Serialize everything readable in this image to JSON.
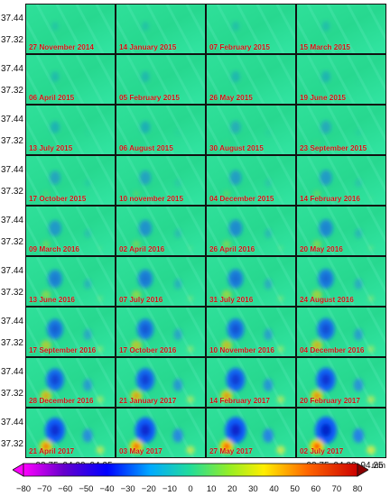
{
  "figure": {
    "y_ticks": [
      "37.44",
      "37.32"
    ],
    "x_ticks": [
      "93.75",
      "94.00",
      "94.25"
    ],
    "panels": [
      {
        "date": "27 November 2014",
        "level": 0.0
      },
      {
        "date": "14 January 2015",
        "level": 0.02
      },
      {
        "date": "07 February 2015",
        "level": 0.04
      },
      {
        "date": "15 March 2015",
        "level": 0.06
      },
      {
        "date": "06 April 2015",
        "level": 0.08
      },
      {
        "date": "05 February 2015",
        "level": 0.1
      },
      {
        "date": "26 May 2015",
        "level": 0.12
      },
      {
        "date": "19 June 2015",
        "level": 0.14
      },
      {
        "date": "13 July 2015",
        "level": 0.16
      },
      {
        "date": "06 August 2015",
        "level": 0.18
      },
      {
        "date": "30 August 2015",
        "level": 0.2
      },
      {
        "date": "23 September 2015",
        "level": 0.22
      },
      {
        "date": "17 October 2015",
        "level": 0.26
      },
      {
        "date": "10 november 2015",
        "level": 0.29
      },
      {
        "date": "04 December 2015",
        "level": 0.32
      },
      {
        "date": "14 February 2016",
        "level": 0.35
      },
      {
        "date": "09 March 2016",
        "level": 0.38
      },
      {
        "date": "02 April 2016",
        "level": 0.41
      },
      {
        "date": "26 April 2016",
        "level": 0.44
      },
      {
        "date": "20 May 2016",
        "level": 0.47
      },
      {
        "date": "13 June 2016",
        "level": 0.5
      },
      {
        "date": "07 July 2016",
        "level": 0.53
      },
      {
        "date": "31 July 2016",
        "level": 0.56
      },
      {
        "date": "24 August 2016",
        "level": 0.59
      },
      {
        "date": "17 September 2016",
        "level": 0.62
      },
      {
        "date": "17 October 2016",
        "level": 0.65
      },
      {
        "date": "10 November 2016",
        "level": 0.68
      },
      {
        "date": "04 December 2016",
        "level": 0.71
      },
      {
        "date": "28 December 2016",
        "level": 0.74
      },
      {
        "date": "21 January 2017",
        "level": 0.77
      },
      {
        "date": "14 February 2017",
        "level": 0.8
      },
      {
        "date": "20 February 2017",
        "level": 0.83
      },
      {
        "date": "21 April 2017",
        "level": 0.88
      },
      {
        "date": "03 May 2017",
        "level": 0.92
      },
      {
        "date": "27 May 2017",
        "level": 0.96
      },
      {
        "date": "02 July 2017",
        "level": 1.0
      }
    ]
  },
  "colorbar": {
    "unit": "mm",
    "ticks": [
      "−80",
      "−70",
      "−60",
      "−50",
      "−40",
      "−30",
      "−20",
      "−10",
      "0",
      "10",
      "20",
      "30",
      "40",
      "50",
      "60",
      "70",
      "80"
    ],
    "colors": {
      "min": "#ff00ff",
      "neg_strong": "#0000cc",
      "neg_mid": "#00aaff",
      "zero": "#22dd99",
      "pos_mid": "#ffee00",
      "pos_strong": "#dd0000",
      "max": "#8b0000"
    }
  }
}
